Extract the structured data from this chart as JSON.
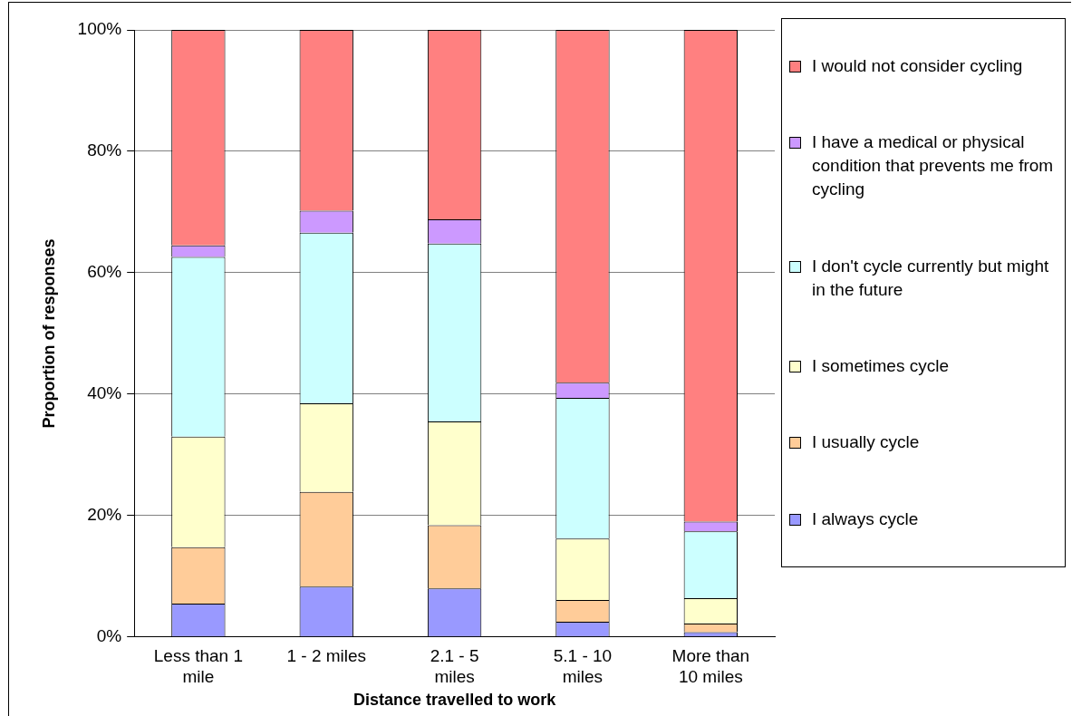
{
  "chart_data": {
    "type": "bar",
    "stacked": true,
    "xlabel": "Distance travelled to work",
    "ylabel": "Proportion of responses",
    "categories": [
      "Less than 1 mile",
      "1 - 2 miles",
      "2.1 - 5 miles",
      "5.1 - 10 miles",
      "More than 10 miles"
    ],
    "series": [
      {
        "name": "I always cycle",
        "color": "#9999ff",
        "values": [
          5.5,
          8.3,
          8.0,
          2.5,
          0.8
        ]
      },
      {
        "name": "I usually cycle",
        "color": "#ffcc99",
        "values": [
          9.3,
          15.6,
          10.4,
          3.6,
          1.4
        ]
      },
      {
        "name": "I sometimes cycle",
        "color": "#ffffcc",
        "values": [
          18.2,
          14.6,
          17.1,
          10.1,
          4.2
        ]
      },
      {
        "name": "I don't cycle currently but might in the future",
        "color": "#ccffff",
        "values": [
          29.6,
          28.1,
          29.3,
          23.2,
          11.0
        ]
      },
      {
        "name": "I have a medical or physical condition that prevents me from cycling",
        "color": "#cc99ff",
        "values": [
          1.9,
          3.6,
          4.0,
          2.5,
          1.6
        ]
      },
      {
        "name": "I would not consider cycling",
        "color": "#ff8080",
        "values": [
          35.5,
          29.8,
          31.2,
          58.1,
          81.0
        ]
      }
    ],
    "ylim": [
      0,
      100
    ],
    "yticks": [
      {
        "value": 0,
        "label": "0%"
      },
      {
        "value": 20,
        "label": "20%"
      },
      {
        "value": 40,
        "label": "40%"
      },
      {
        "value": 60,
        "label": "60%"
      },
      {
        "value": 80,
        "label": "80%"
      },
      {
        "value": 100,
        "label": "100%"
      }
    ],
    "grid": "y",
    "legend": "right"
  }
}
